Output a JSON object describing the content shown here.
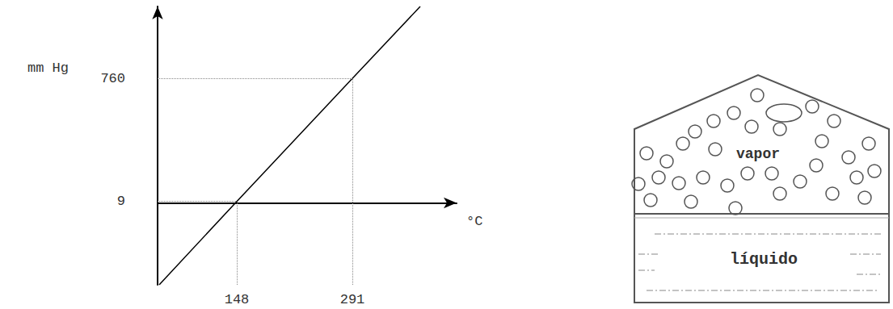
{
  "chart_data": {
    "type": "line",
    "x_label": "°C",
    "y_label": "mm Hg",
    "x": [
      52,
      148,
      291,
      375
    ],
    "values": [
      -500,
      9,
      760,
      1200
    ],
    "color": "#000000",
    "xlim": [
      50,
      420
    ],
    "ylim": [
      -500,
      1200
    ],
    "xticks": [
      148,
      291
    ],
    "yticks": [
      9,
      760
    ],
    "grid": false
  },
  "diagram": {
    "vapor": "vapor",
    "liquid": "líquido"
  }
}
